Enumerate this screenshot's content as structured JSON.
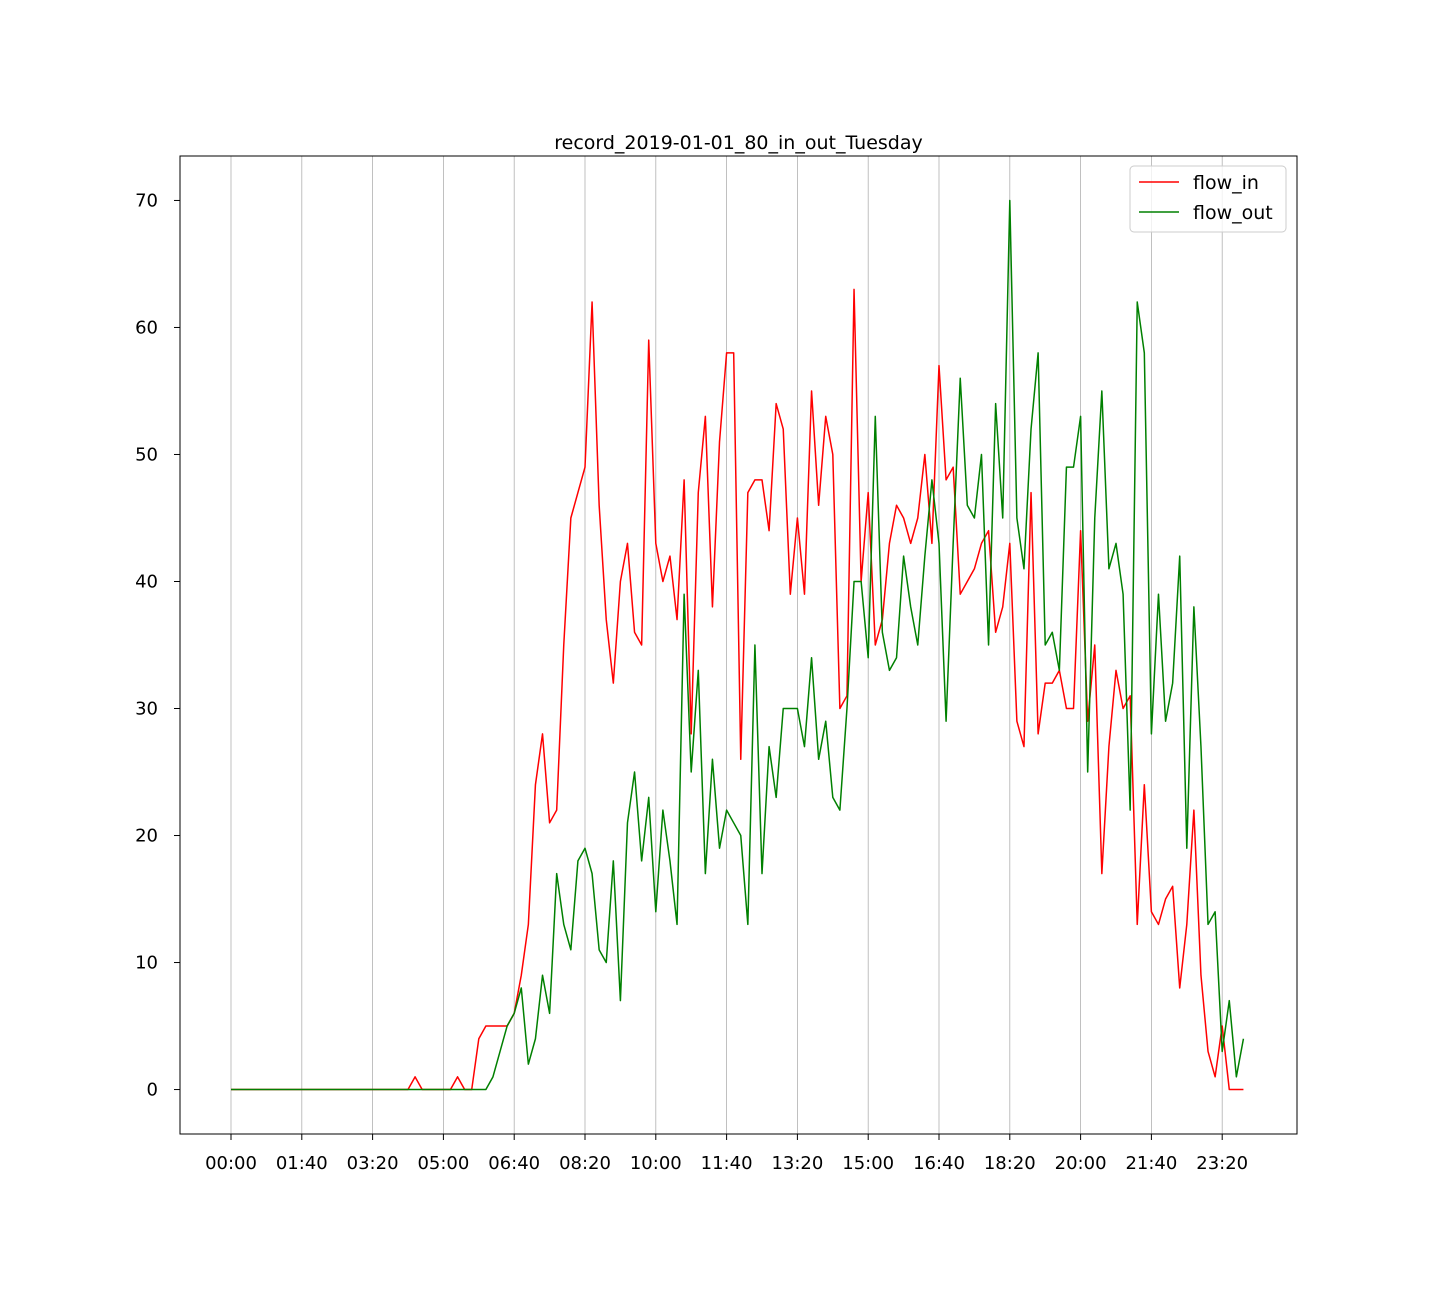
{
  "chart_data": {
    "type": "line",
    "title": "record_2019-01-01_80_in_out_Tuesday",
    "xlabel": "",
    "ylabel": "",
    "x_start": "00:00",
    "x_step_minutes": 10,
    "x_tick_labels": [
      "00:00",
      "01:40",
      "03:20",
      "05:00",
      "06:40",
      "08:20",
      "10:00",
      "11:40",
      "13:20",
      "15:00",
      "16:40",
      "18:20",
      "20:00",
      "21:40",
      "23:20"
    ],
    "y_tick_labels": [
      "0",
      "10",
      "20",
      "30",
      "40",
      "50",
      "60",
      "70"
    ],
    "ylim": [
      -3.5,
      73.5
    ],
    "grid": "vertical",
    "legend_position": "top-right",
    "series": [
      {
        "name": "flow_in",
        "color": "#ff0000",
        "values": [
          0,
          0,
          0,
          0,
          0,
          0,
          0,
          0,
          0,
          0,
          0,
          0,
          0,
          0,
          0,
          0,
          0,
          0,
          0,
          0,
          0,
          0,
          0,
          0,
          0,
          0,
          1,
          0,
          0,
          0,
          0,
          0,
          1,
          0,
          0,
          4,
          5,
          5,
          5,
          5,
          6,
          9,
          13,
          24,
          28,
          21,
          22,
          35,
          45,
          47,
          49,
          62,
          46,
          37,
          32,
          40,
          43,
          36,
          35,
          59,
          43,
          40,
          42,
          37,
          48,
          28,
          47,
          53,
          38,
          51,
          58,
          58,
          26,
          47,
          48,
          48,
          44,
          54,
          52,
          39,
          45,
          39,
          55,
          46,
          53,
          50,
          30,
          31,
          63,
          40,
          47,
          35,
          37,
          43,
          46,
          45,
          43,
          45,
          50,
          43,
          57,
          48,
          49,
          39,
          40,
          41,
          43,
          44,
          36,
          38,
          43,
          29,
          27,
          47,
          28,
          32,
          32,
          33,
          30,
          30,
          44,
          29,
          35,
          17,
          27,
          33,
          30,
          31,
          13,
          24,
          14,
          13,
          15,
          16,
          8,
          13,
          22,
          9,
          3,
          1,
          5,
          0,
          0,
          0
        ]
      },
      {
        "name": "flow_out",
        "color": "#008000",
        "values": [
          0,
          0,
          0,
          0,
          0,
          0,
          0,
          0,
          0,
          0,
          0,
          0,
          0,
          0,
          0,
          0,
          0,
          0,
          0,
          0,
          0,
          0,
          0,
          0,
          0,
          0,
          0,
          0,
          0,
          0,
          0,
          0,
          0,
          0,
          0,
          0,
          0,
          1,
          3,
          5,
          6,
          8,
          2,
          4,
          9,
          6,
          17,
          13,
          11,
          18,
          19,
          17,
          11,
          10,
          18,
          7,
          21,
          25,
          18,
          23,
          14,
          22,
          18,
          13,
          39,
          25,
          33,
          17,
          26,
          19,
          22,
          21,
          20,
          13,
          35,
          17,
          27,
          23,
          30,
          30,
          30,
          27,
          34,
          26,
          29,
          23,
          22,
          30,
          40,
          40,
          34,
          53,
          36,
          33,
          34,
          42,
          38,
          35,
          42,
          48,
          43,
          29,
          43,
          56,
          46,
          45,
          50,
          35,
          54,
          45,
          70,
          45,
          41,
          52,
          58,
          35,
          36,
          33,
          49,
          49,
          53,
          25,
          45,
          55,
          41,
          43,
          39,
          22,
          62,
          58,
          28,
          39,
          29,
          32,
          42,
          19,
          38,
          27,
          13,
          14,
          3,
          7,
          1,
          4
        ]
      }
    ]
  }
}
